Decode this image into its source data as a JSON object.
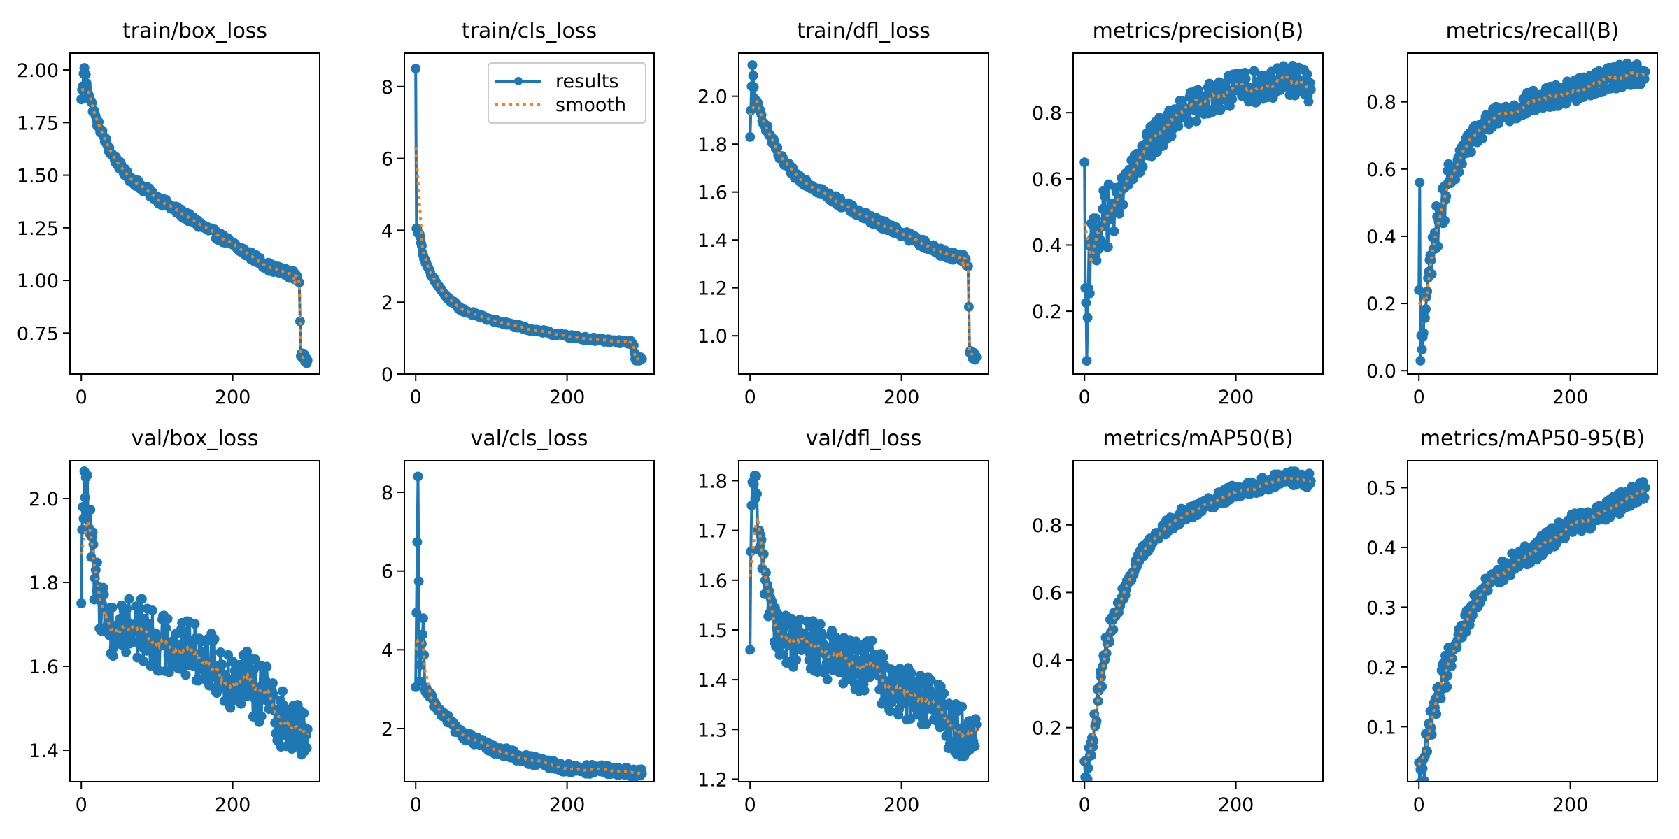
{
  "figure": {
    "layout": "2 rows x 5 columns",
    "colors": {
      "results": "#1f77b4",
      "smooth": "#ff7f0e",
      "axes": "#000000",
      "legend_border": "#cccccc"
    },
    "legend": {
      "entries": [
        "results",
        "smooth"
      ],
      "location": "upper right",
      "panel": "train/cls_loss"
    }
  },
  "chart_data": [
    {
      "type": "line",
      "title": "train/box_loss",
      "xlabel": "",
      "ylabel": "",
      "xlim": [
        -15,
        315
      ],
      "ylim": [
        0.555,
        2.08
      ],
      "xticks": [
        0,
        200
      ],
      "xtick_labels": [
        "0",
        "200"
      ],
      "yticks": [
        0.75,
        1.0,
        1.25,
        1.5,
        1.75,
        2.0
      ],
      "ytick_labels": [
        "0.75",
        "1.00",
        "1.25",
        "1.50",
        "1.75",
        "2.00"
      ],
      "shape": "decay",
      "anchors": [
        [
          0,
          1.86
        ],
        [
          4,
          2.01
        ],
        [
          10,
          1.88
        ],
        [
          20,
          1.76
        ],
        [
          40,
          1.6
        ],
        [
          60,
          1.5
        ],
        [
          100,
          1.39
        ],
        [
          150,
          1.28
        ],
        [
          200,
          1.17
        ],
        [
          250,
          1.06
        ],
        [
          285,
          1.02
        ],
        [
          288,
          0.99
        ],
        [
          290,
          0.64
        ],
        [
          299,
          0.62
        ]
      ],
      "noise": 0.02
    },
    {
      "type": "line",
      "title": "train/cls_loss",
      "xlabel": "",
      "ylabel": "",
      "xlim": [
        -15,
        315
      ],
      "ylim": [
        0,
        8.93
      ],
      "xticks": [
        0,
        200
      ],
      "xtick_labels": [
        "0",
        "200"
      ],
      "yticks": [
        0,
        2,
        4,
        6,
        8
      ],
      "ytick_labels": [
        "0",
        "2",
        "4",
        "6",
        "8"
      ],
      "shape": "decay",
      "anchors": [
        [
          0,
          8.5
        ],
        [
          1,
          4.05
        ],
        [
          5,
          3.9
        ],
        [
          10,
          3.3
        ],
        [
          20,
          2.75
        ],
        [
          40,
          2.15
        ],
        [
          60,
          1.8
        ],
        [
          100,
          1.5
        ],
        [
          150,
          1.25
        ],
        [
          200,
          1.05
        ],
        [
          250,
          0.93
        ],
        [
          285,
          0.88
        ],
        [
          288,
          0.8
        ],
        [
          290,
          0.42
        ],
        [
          299,
          0.42
        ]
      ],
      "noise": 0.05
    },
    {
      "type": "line",
      "title": "train/dfl_loss",
      "xlabel": "",
      "ylabel": "",
      "xlim": [
        -15,
        315
      ],
      "ylim": [
        0.84,
        2.18
      ],
      "xticks": [
        0,
        200
      ],
      "xtick_labels": [
        "0",
        "200"
      ],
      "yticks": [
        1.0,
        1.2,
        1.4,
        1.6,
        1.8,
        2.0
      ],
      "ytick_labels": [
        "1.0",
        "1.2",
        "1.4",
        "1.6",
        "1.8",
        "2.0"
      ],
      "shape": "decay",
      "anchors": [
        [
          0,
          1.83
        ],
        [
          3,
          2.13
        ],
        [
          6,
          1.99
        ],
        [
          20,
          1.88
        ],
        [
          40,
          1.74
        ],
        [
          60,
          1.67
        ],
        [
          100,
          1.59
        ],
        [
          150,
          1.5
        ],
        [
          200,
          1.43
        ],
        [
          250,
          1.35
        ],
        [
          285,
          1.32
        ],
        [
          288,
          1.29
        ],
        [
          290,
          0.93
        ],
        [
          299,
          0.91
        ]
      ],
      "noise": 0.018
    },
    {
      "type": "line",
      "title": "metrics/precision(B)",
      "xlabel": "",
      "ylabel": "",
      "xlim": [
        -15,
        315
      ],
      "ylim": [
        0.01,
        0.98
      ],
      "xticks": [
        0,
        200
      ],
      "xtick_labels": [
        "0",
        "200"
      ],
      "yticks": [
        0.2,
        0.4,
        0.6,
        0.8
      ],
      "ytick_labels": [
        "0.2",
        "0.4",
        "0.6",
        "0.8"
      ],
      "shape": "rise",
      "anchors": [
        [
          0,
          0.65
        ],
        [
          1,
          0.27
        ],
        [
          3,
          0.05
        ],
        [
          5,
          0.27
        ],
        [
          10,
          0.42
        ],
        [
          20,
          0.45
        ],
        [
          40,
          0.52
        ],
        [
          60,
          0.6
        ],
        [
          80,
          0.69
        ],
        [
          100,
          0.74
        ],
        [
          130,
          0.8
        ],
        [
          160,
          0.84
        ],
        [
          200,
          0.87
        ],
        [
          250,
          0.89
        ],
        [
          280,
          0.9
        ],
        [
          299,
          0.87
        ]
      ],
      "noise": 0.05
    },
    {
      "type": "line",
      "title": "metrics/recall(B)",
      "xlabel": "",
      "ylabel": "",
      "xlim": [
        -15,
        315
      ],
      "ylim": [
        -0.01,
        0.945
      ],
      "xticks": [
        0,
        200
      ],
      "xtick_labels": [
        "0",
        "200"
      ],
      "yticks": [
        0.0,
        0.2,
        0.4,
        0.6,
        0.8
      ],
      "ytick_labels": [
        "0.0",
        "0.2",
        "0.4",
        "0.6",
        "0.8"
      ],
      "shape": "rise",
      "anchors": [
        [
          0,
          0.24
        ],
        [
          1,
          0.56
        ],
        [
          2,
          0.03
        ],
        [
          5,
          0.1
        ],
        [
          10,
          0.22
        ],
        [
          20,
          0.4
        ],
        [
          40,
          0.56
        ],
        [
          60,
          0.66
        ],
        [
          80,
          0.71
        ],
        [
          100,
          0.75
        ],
        [
          150,
          0.8
        ],
        [
          200,
          0.83
        ],
        [
          250,
          0.87
        ],
        [
          299,
          0.89
        ]
      ],
      "noise": 0.035
    },
    {
      "type": "line",
      "title": "val/box_loss",
      "xlabel": "",
      "ylabel": "",
      "xlim": [
        -15,
        315
      ],
      "ylim": [
        1.325,
        2.09
      ],
      "xticks": [
        0,
        200
      ],
      "xtick_labels": [
        "0",
        "200"
      ],
      "yticks": [
        1.4,
        1.6,
        1.8,
        2.0
      ],
      "ytick_labels": [
        "1.4",
        "1.6",
        "1.8",
        "2.0"
      ],
      "shape": "noisy-decay",
      "anchors": [
        [
          0,
          1.75
        ],
        [
          2,
          1.98
        ],
        [
          6,
          2.05
        ],
        [
          10,
          1.93
        ],
        [
          20,
          1.78
        ],
        [
          40,
          1.69
        ],
        [
          70,
          1.7
        ],
        [
          100,
          1.66
        ],
        [
          130,
          1.65
        ],
        [
          160,
          1.63
        ],
        [
          190,
          1.58
        ],
        [
          220,
          1.56
        ],
        [
          250,
          1.52
        ],
        [
          275,
          1.45
        ],
        [
          299,
          1.45
        ]
      ],
      "noise": 0.075
    },
    {
      "type": "line",
      "title": "val/cls_loss",
      "xlabel": "",
      "ylabel": "",
      "xlim": [
        -15,
        315
      ],
      "ylim": [
        0.65,
        8.8
      ],
      "xticks": [
        0,
        200
      ],
      "xtick_labels": [
        "0",
        "200"
      ],
      "yticks": [
        2,
        4,
        6,
        8
      ],
      "ytick_labels": [
        "2",
        "4",
        "6",
        "8"
      ],
      "shape": "noisy-decay",
      "anchors": [
        [
          0,
          3.05
        ],
        [
          3,
          8.4
        ],
        [
          5,
          3.2
        ],
        [
          10,
          4.8
        ],
        [
          12,
          3.0
        ],
        [
          30,
          2.5
        ],
        [
          60,
          1.85
        ],
        [
          100,
          1.5
        ],
        [
          150,
          1.2
        ],
        [
          200,
          0.98
        ],
        [
          250,
          0.95
        ],
        [
          299,
          0.85
        ]
      ],
      "noise": 0.12
    },
    {
      "type": "line",
      "title": "val/dfl_loss",
      "xlabel": "",
      "ylabel": "",
      "xlim": [
        -15,
        315
      ],
      "ylim": [
        1.195,
        1.84
      ],
      "xticks": [
        0,
        200
      ],
      "xtick_labels": [
        "0",
        "200"
      ],
      "yticks": [
        1.2,
        1.3,
        1.4,
        1.5,
        1.6,
        1.7,
        1.8
      ],
      "ytick_labels": [
        "1.2",
        "1.3",
        "1.4",
        "1.5",
        "1.6",
        "1.7",
        "1.8"
      ],
      "shape": "noisy-decay",
      "anchors": [
        [
          0,
          1.46
        ],
        [
          2,
          1.75
        ],
        [
          6,
          1.81
        ],
        [
          10,
          1.7
        ],
        [
          20,
          1.6
        ],
        [
          40,
          1.48
        ],
        [
          70,
          1.48
        ],
        [
          100,
          1.45
        ],
        [
          130,
          1.43
        ],
        [
          160,
          1.43
        ],
        [
          190,
          1.37
        ],
        [
          220,
          1.37
        ],
        [
          250,
          1.34
        ],
        [
          275,
          1.29
        ],
        [
          299,
          1.31
        ]
      ],
      "noise": 0.055
    },
    {
      "type": "line",
      "title": "metrics/mAP50(B)",
      "xlabel": "",
      "ylabel": "",
      "xlim": [
        -15,
        315
      ],
      "ylim": [
        0.04,
        0.99
      ],
      "xticks": [
        0,
        200
      ],
      "xtick_labels": [
        "0",
        "200"
      ],
      "yticks": [
        0.2,
        0.4,
        0.6,
        0.8
      ],
      "ytick_labels": [
        "0.2",
        "0.4",
        "0.6",
        "0.8"
      ],
      "shape": "rise",
      "anchors": [
        [
          0,
          0.1
        ],
        [
          5,
          0.08
        ],
        [
          10,
          0.17
        ],
        [
          20,
          0.32
        ],
        [
          30,
          0.45
        ],
        [
          40,
          0.53
        ],
        [
          60,
          0.65
        ],
        [
          80,
          0.73
        ],
        [
          100,
          0.78
        ],
        [
          130,
          0.83
        ],
        [
          160,
          0.86
        ],
        [
          200,
          0.9
        ],
        [
          250,
          0.93
        ],
        [
          280,
          0.94
        ],
        [
          299,
          0.93
        ]
      ],
      "noise": 0.022
    },
    {
      "type": "line",
      "title": "metrics/mAP50-95(B)",
      "xlabel": "",
      "ylabel": "",
      "xlim": [
        -15,
        315
      ],
      "ylim": [
        0.008,
        0.545
      ],
      "xticks": [
        0,
        200
      ],
      "xtick_labels": [
        "0",
        "200"
      ],
      "yticks": [
        0.1,
        0.2,
        0.3,
        0.4,
        0.5
      ],
      "ytick_labels": [
        "0.1",
        "0.2",
        "0.3",
        "0.4",
        "0.5"
      ],
      "shape": "rise",
      "anchors": [
        [
          0,
          0.04
        ],
        [
          5,
          0.03
        ],
        [
          10,
          0.06
        ],
        [
          20,
          0.14
        ],
        [
          40,
          0.21
        ],
        [
          60,
          0.27
        ],
        [
          80,
          0.32
        ],
        [
          100,
          0.35
        ],
        [
          130,
          0.38
        ],
        [
          160,
          0.4
        ],
        [
          200,
          0.44
        ],
        [
          230,
          0.45
        ],
        [
          260,
          0.47
        ],
        [
          299,
          0.5
        ]
      ],
      "noise": 0.018
    }
  ]
}
